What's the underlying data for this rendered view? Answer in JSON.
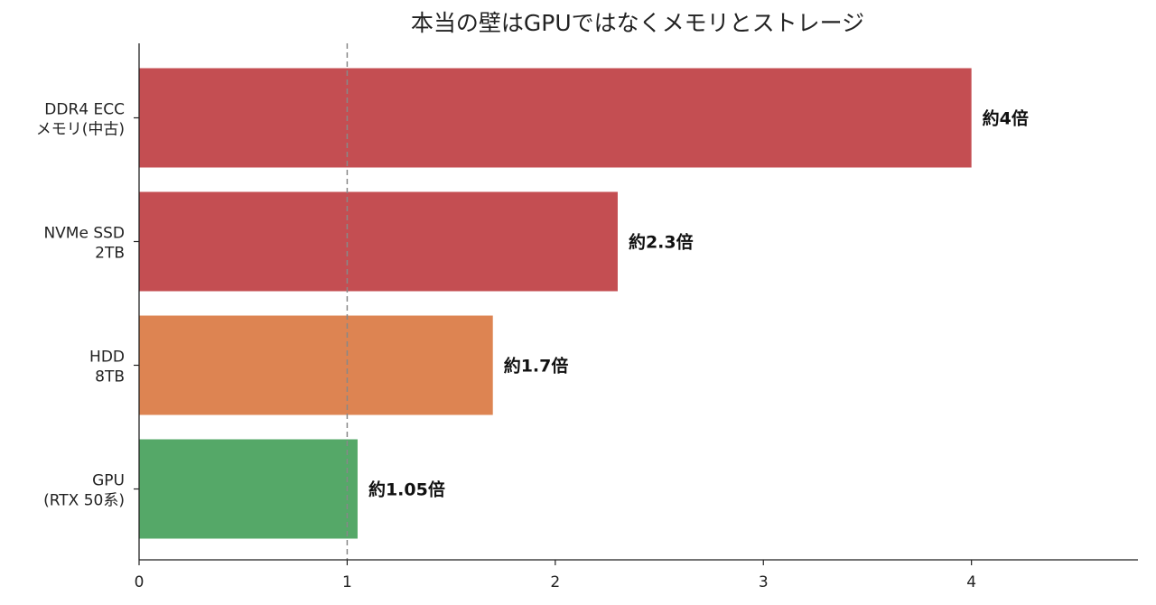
{
  "chart_data": {
    "type": "bar",
    "orientation": "horizontal",
    "title": "本当の壁はGPUではなくメモリとストレージ",
    "xlabel": "",
    "ylabel": "",
    "categories": [
      [
        "DDR4 ECC",
        "メモリ(中古)"
      ],
      [
        "NVMe SSD",
        "2TB"
      ],
      [
        "HDD",
        "8TB"
      ],
      [
        "GPU",
        "(RTX 50系)"
      ]
    ],
    "values": [
      4,
      2.3,
      1.7,
      1.05
    ],
    "value_labels": [
      "約4倍",
      "約2.3倍",
      "約1.7倍",
      "約1.05倍"
    ],
    "colors": [
      "#c44e52",
      "#c44e52",
      "#dd8452",
      "#55a868"
    ],
    "xlim": [
      0,
      4.8
    ],
    "xticks": [
      0,
      1,
      2,
      3,
      4
    ],
    "reference_line": {
      "x": 1,
      "style": "dashed",
      "color": "#888888"
    },
    "grid": false,
    "legend": "none"
  }
}
